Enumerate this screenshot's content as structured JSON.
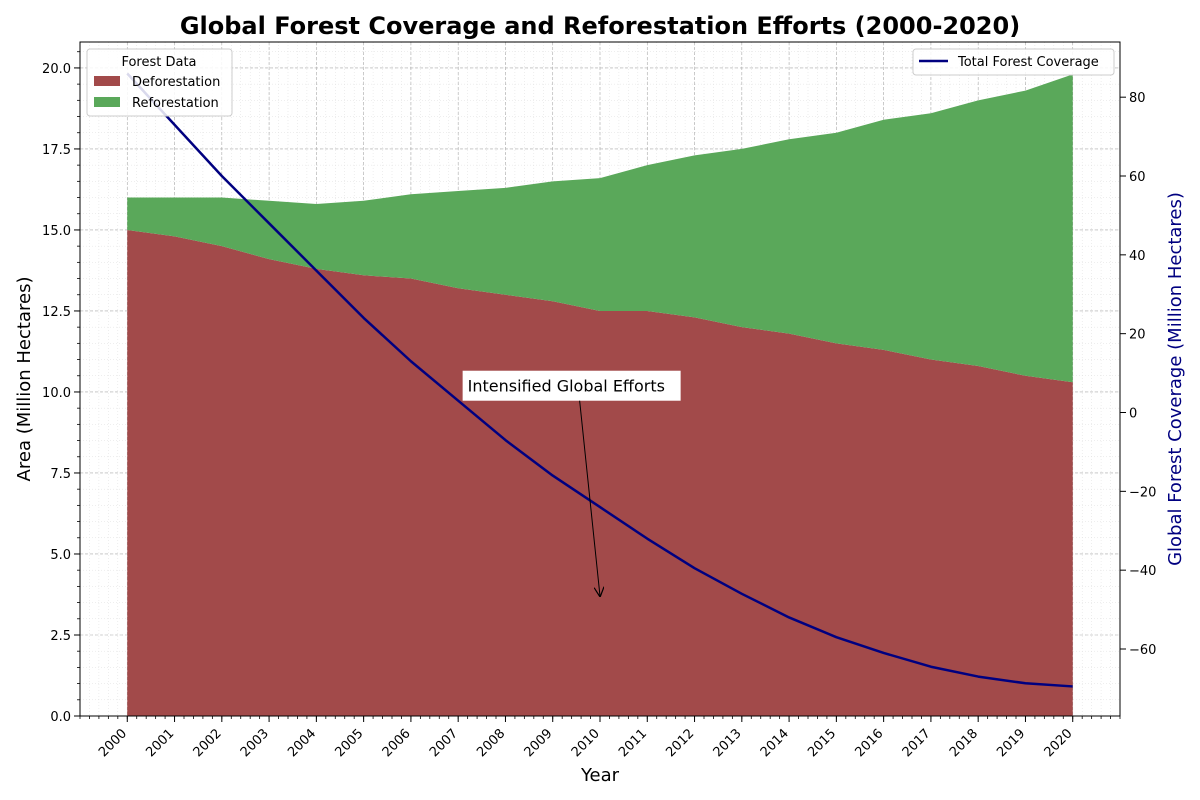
{
  "chart_data": {
    "type": "area",
    "title": "Global Forest Coverage and Reforestation Efforts (2000-2020)",
    "xlabel": "Year",
    "ylabel": "Area (Million Hectares)",
    "y2label": "Global Forest Coverage (Million Hectares)",
    "x": [
      2000,
      2001,
      2002,
      2003,
      2004,
      2005,
      2006,
      2007,
      2008,
      2009,
      2010,
      2011,
      2012,
      2013,
      2014,
      2015,
      2016,
      2017,
      2018,
      2019,
      2020
    ],
    "ylim": [
      0,
      20.8
    ],
    "y2lim": [
      -77,
      94
    ],
    "yticks": [
      "0.0",
      "2.5",
      "5.0",
      "7.5",
      "10.0",
      "12.5",
      "15.0",
      "17.5",
      "20.0"
    ],
    "y2ticks": [
      "−60",
      "−40",
      "−20",
      "0",
      "20",
      "40",
      "60",
      "80"
    ],
    "grid": true,
    "legend_title": "Forest Data",
    "legend_placement": "top-left",
    "legend2_placement": "top-right",
    "series": [
      {
        "name": "Deforestation",
        "kind": "stacked-area",
        "axis": "left",
        "color": "#a24a4a",
        "values": [
          15.0,
          14.8,
          14.5,
          14.1,
          13.8,
          13.6,
          13.5,
          13.2,
          13.0,
          12.8,
          12.5,
          12.5,
          12.3,
          12.0,
          11.8,
          11.5,
          11.3,
          11.0,
          10.8,
          10.5,
          10.3
        ]
      },
      {
        "name": "Reforestation",
        "kind": "stacked-area",
        "axis": "left",
        "color": "#5aa85a",
        "values": [
          1.0,
          1.2,
          1.5,
          1.8,
          2.0,
          2.3,
          2.6,
          3.0,
          3.3,
          3.7,
          4.1,
          4.5,
          5.0,
          5.5,
          6.0,
          6.5,
          7.1,
          7.6,
          8.2,
          8.8,
          9.5
        ]
      },
      {
        "name": "Total Forest Coverage",
        "kind": "line",
        "axis": "right",
        "color": "#000080",
        "values": [
          86,
          73,
          60,
          48,
          36,
          24,
          13,
          3,
          -7,
          -16,
          -24,
          -32,
          -39.5,
          -46,
          -52,
          -57,
          -61,
          -64.5,
          -67,
          -68.7,
          -69.5
        ]
      }
    ],
    "annotation": {
      "text": "Intensified Global Efforts",
      "text_x": 2007.2,
      "text_y": 10.1,
      "arrow_to_x": 2010,
      "arrow_to_y": 3.7
    }
  },
  "colors": {
    "deforestation": "#a24a4a",
    "reforestation": "#5aa85a",
    "total_line": "#000080",
    "right_axis_label": "#000080"
  }
}
